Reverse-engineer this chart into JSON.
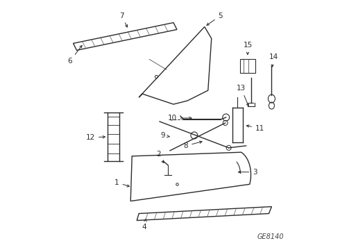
{
  "background_color": "#ffffff",
  "diagram_code": "GE8140",
  "figsize": [
    4.9,
    3.6
  ],
  "dpi": 100,
  "line_color": "#2a2a2a",
  "label_color": "#000000",
  "label_fontsize": 7.5
}
